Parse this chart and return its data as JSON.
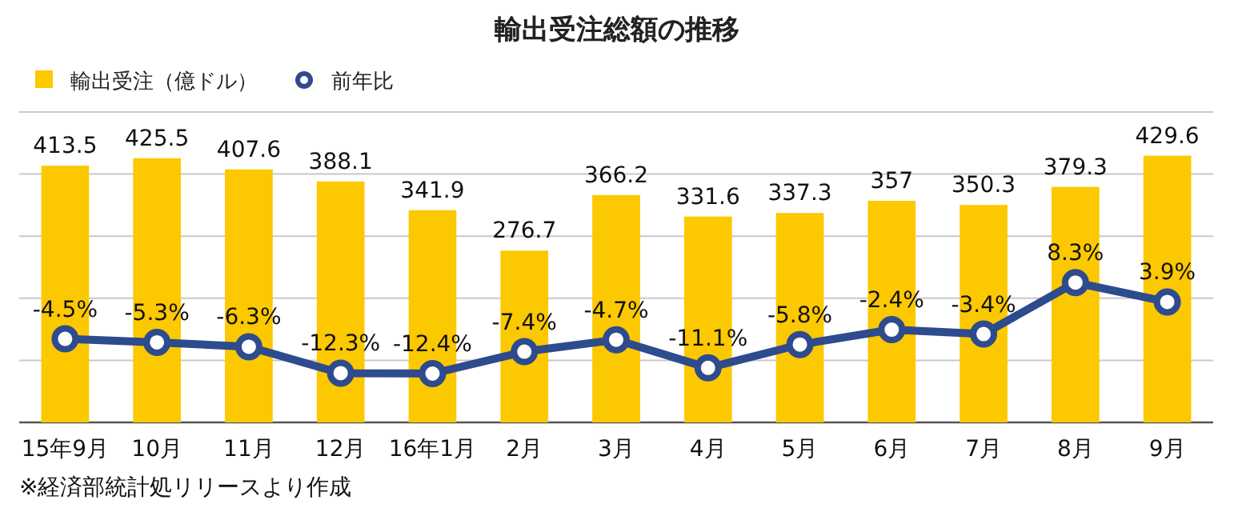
{
  "chart_data": {
    "type": "bar",
    "title": "輸出受注総額の推移",
    "categories": [
      "15年9月",
      "10月",
      "11月",
      "12月",
      "16年1月",
      "2月",
      "3月",
      "4月",
      "5月",
      "6月",
      "7月",
      "8月",
      "9月"
    ],
    "series": [
      {
        "name": "輸出受注（億ドル）",
        "color": "#fcc800",
        "values": [
          413.5,
          425.5,
          407.6,
          388.1,
          341.9,
          276.7,
          366.2,
          331.6,
          337.3,
          357,
          350.3,
          379.3,
          429.6
        ]
      },
      {
        "name": "前年比",
        "type": "line",
        "axis": "y2",
        "color": "#2e4b8d",
        "marker": "circle",
        "values": [
          -4.5,
          -5.3,
          -6.3,
          -12.3,
          -12.4,
          -7.4,
          -4.7,
          -11.1,
          -5.8,
          -2.4,
          -3.4,
          8.3,
          3.9
        ],
        "value_labels": [
          "-4.5%",
          "-5.3%",
          "-6.3%",
          "-12.3%",
          "-12.4%",
          "-7.4%",
          "-4.7%",
          "-11.1%",
          "-5.8%",
          "-2.4%",
          "-3.4%",
          "8.3%",
          "3.9%"
        ]
      }
    ],
    "ylim": [
      0,
      500
    ],
    "yticks": [
      {
        "value": 100,
        "label": null
      },
      {
        "value": 200,
        "label": null
      },
      {
        "value": 300,
        "label": null
      },
      {
        "value": 400,
        "label": null
      },
      {
        "value": 500,
        "label": null
      }
    ],
    "y2lim": [
      -23.5,
      47.1
    ],
    "tick_labels": "x",
    "grid": "y",
    "legend": "top left",
    "data_labels": true,
    "annotations": [
      "※経済部統計処リリースより作成"
    ]
  }
}
